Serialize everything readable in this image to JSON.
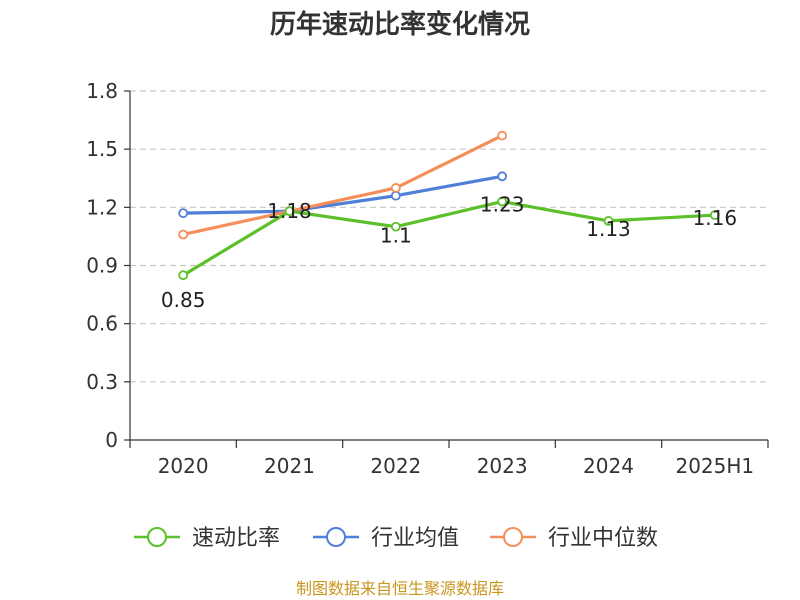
{
  "chart_data": {
    "type": "line",
    "title": "历年速动比率变化情况",
    "categories": [
      "2020",
      "2021",
      "2022",
      "2023",
      "2024",
      "2025H1"
    ],
    "ylim": [
      0,
      1.8
    ],
    "yticks": [
      "0",
      "0.3",
      "0.6",
      "0.9",
      "1.2",
      "1.5",
      "1.8"
    ],
    "grid": true,
    "legend_position": "bottom",
    "series": [
      {
        "name": "速动比率",
        "color": "#5cc02a",
        "values": [
          0.85,
          1.18,
          1.1,
          1.23,
          1.13,
          1.16
        ],
        "labels": [
          "0.85",
          "1.18",
          "1.1",
          "1.23",
          "1.13",
          "1.16"
        ]
      },
      {
        "name": "行业均值",
        "color": "#4f7fd8",
        "values": [
          1.17,
          1.18,
          1.26,
          1.36,
          null,
          null
        ]
      },
      {
        "name": "行业中位数",
        "color": "#f58e5a",
        "values": [
          1.06,
          1.18,
          1.3,
          1.57,
          null,
          null
        ]
      }
    ],
    "source": "制图数据来自恒生聚源数据库"
  }
}
